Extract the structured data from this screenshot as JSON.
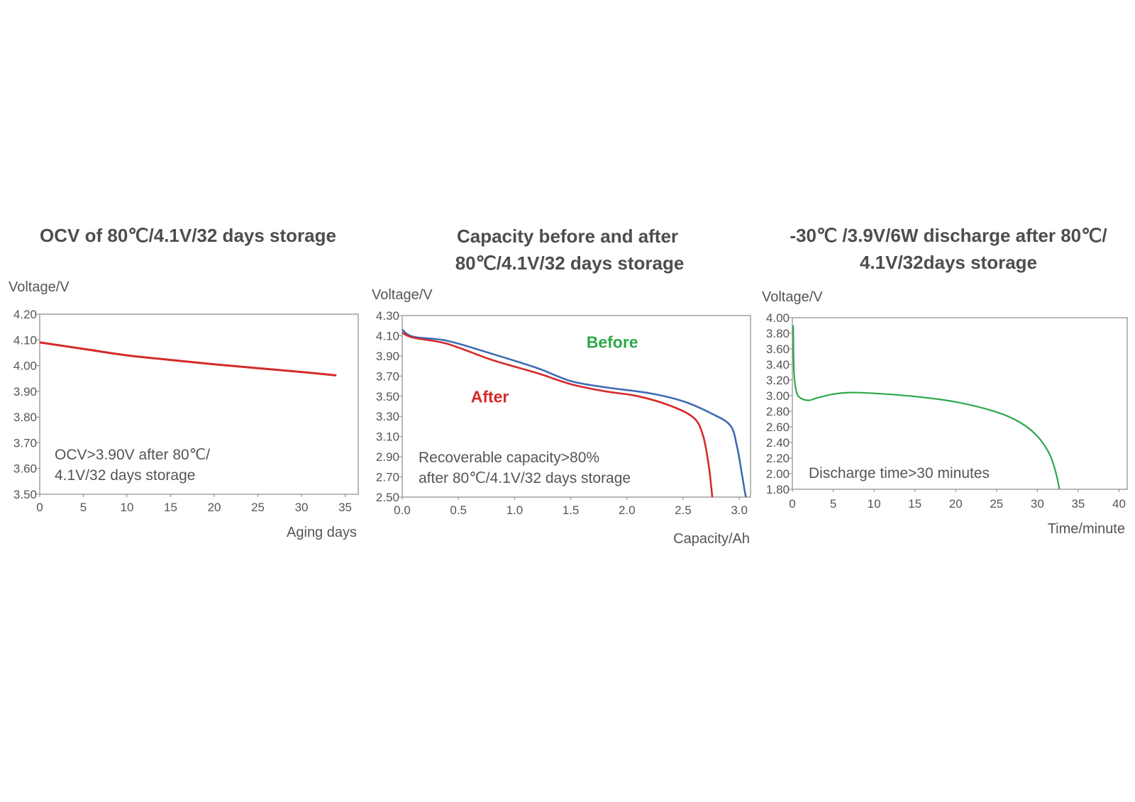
{
  "colors": {
    "red": "#d42a2a",
    "blue": "#3d6bb3",
    "green": "#2ea84a",
    "frame": "#888888",
    "text": "#555555"
  },
  "chart_data": [
    {
      "type": "line",
      "title": "OCV of  80℃/4.1V/32 days storage",
      "ylabel": "Voltage/V",
      "xlabel": "Aging days",
      "xlim": [
        0,
        36.5
      ],
      "ylim": [
        3.5,
        4.2
      ],
      "xticks": [
        0,
        5,
        10,
        15,
        20,
        25,
        30,
        35
      ],
      "xtick_labels": [
        "0",
        "5",
        "10",
        "15",
        "20",
        "25",
        "30",
        "35"
      ],
      "yticks": [
        3.5,
        3.6,
        3.7,
        3.8,
        3.9,
        4.0,
        4.1,
        4.2
      ],
      "ytick_labels": [
        "3.50",
        "3.60",
        "3.70",
        "3.80",
        "3.90",
        "4.00",
        "4.10",
        "4.20"
      ],
      "annotation": [
        "OCV>3.90V after 80℃/",
        "4.1V/32 days storage"
      ],
      "series": [
        {
          "name": "OCV",
          "color": "#d42a2a",
          "x": [
            0,
            5,
            10,
            15,
            20,
            25,
            30,
            34
          ],
          "y": [
            4.09,
            4.065,
            4.04,
            4.022,
            4.005,
            3.99,
            3.975,
            3.962
          ]
        }
      ]
    },
    {
      "type": "line",
      "title": "Capacity before and after",
      "title2": "80℃/4.1V/32 days storage",
      "ylabel": "Voltage/V",
      "xlabel": "Capacity/Ah",
      "xlim": [
        0,
        3.1
      ],
      "ylim": [
        2.5,
        4.3
      ],
      "xticks": [
        0.0,
        0.5,
        1.0,
        1.5,
        2.0,
        2.5,
        3.0
      ],
      "xtick_labels": [
        "0.0",
        "0.5",
        "1.0",
        "1.5",
        "2.0",
        "2.5",
        "3.0"
      ],
      "yticks": [
        2.5,
        2.7,
        2.9,
        3.1,
        3.3,
        3.5,
        3.7,
        3.9,
        4.1,
        4.3
      ],
      "ytick_labels": [
        "2.50",
        "2.70",
        "2.90",
        "3.10",
        "3.30",
        "3.50",
        "3.70",
        "3.90",
        "4.10",
        "4.30"
      ],
      "annotation": [
        "Recoverable  capacity>80%",
        "after 80℃/4.1V/32 days storage"
      ],
      "series_labels": [
        {
          "text": "Before",
          "color": "#2ea84a",
          "x": 1.87,
          "y": 3.98
        },
        {
          "text": "After",
          "color": "#d42a2a",
          "x": 0.78,
          "y": 3.44
        }
      ],
      "series": [
        {
          "name": "Before",
          "color": "#3d6bb3",
          "x": [
            0,
            0.1,
            0.4,
            0.8,
            1.2,
            1.5,
            1.8,
            2.2,
            2.5,
            2.75,
            2.92,
            2.98,
            3.02,
            3.05,
            3.06
          ],
          "y": [
            4.16,
            4.09,
            4.05,
            3.92,
            3.78,
            3.65,
            3.59,
            3.53,
            3.45,
            3.33,
            3.21,
            3.0,
            2.75,
            2.55,
            2.5
          ]
        },
        {
          "name": "After",
          "color": "#d42a2a",
          "x": [
            0,
            0.1,
            0.4,
            0.8,
            1.2,
            1.5,
            1.8,
            2.1,
            2.4,
            2.6,
            2.68,
            2.73,
            2.75,
            2.76
          ],
          "y": [
            4.13,
            4.08,
            4.02,
            3.86,
            3.73,
            3.62,
            3.55,
            3.5,
            3.4,
            3.28,
            3.1,
            2.8,
            2.6,
            2.5
          ]
        }
      ]
    },
    {
      "type": "line",
      "title": "-30℃ /3.9V/6W discharge after 80℃/",
      "title2": "4.1V/32days storage",
      "ylabel": "Voltage/V",
      "xlabel": "Time/minute",
      "xlim": [
        0,
        41
      ],
      "ylim": [
        1.8,
        4.0
      ],
      "xticks": [
        0,
        5,
        10,
        15,
        20,
        25,
        30,
        35,
        40
      ],
      "xtick_labels": [
        "0",
        "5",
        "10",
        "15",
        "20",
        "25",
        "30",
        "35",
        "40"
      ],
      "yticks": [
        1.8,
        2.0,
        2.2,
        2.4,
        2.6,
        2.8,
        3.0,
        3.2,
        3.4,
        3.6,
        3.8,
        4.0
      ],
      "ytick_labels": [
        "1.80",
        "2.00",
        "2.20",
        "2.40",
        "2.60",
        "2.80",
        "3.00",
        "3.20",
        "3.40",
        "3.60",
        "3.80",
        "4.00"
      ],
      "annotation": [
        "Discharge time>30 minutes"
      ],
      "series": [
        {
          "name": "Discharge",
          "color": "#2ea84a",
          "x": [
            0.1,
            0.2,
            0.5,
            1,
            2,
            3,
            5,
            7,
            10,
            15,
            20,
            25,
            28,
            30,
            31.5,
            32.3,
            32.7
          ],
          "y": [
            3.9,
            3.3,
            3.05,
            2.97,
            2.94,
            2.97,
            3.02,
            3.04,
            3.03,
            2.99,
            2.92,
            2.79,
            2.65,
            2.48,
            2.25,
            2.0,
            1.8
          ]
        }
      ]
    }
  ]
}
